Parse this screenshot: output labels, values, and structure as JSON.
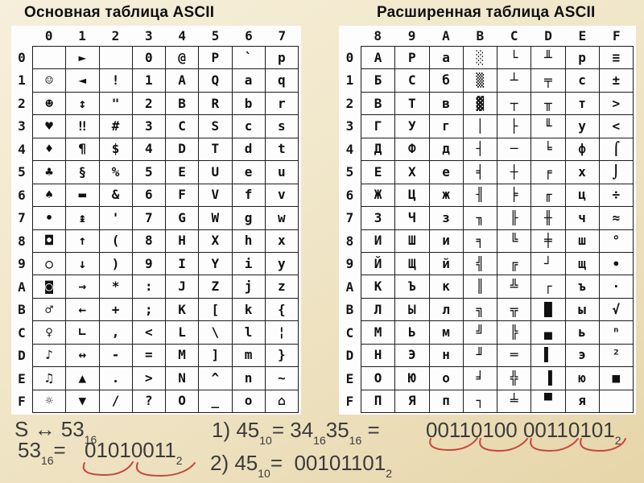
{
  "left_table": {
    "title": "Основная таблица ASCII",
    "col_headers": [
      "0",
      "1",
      "2",
      "3",
      "4",
      "5",
      "6",
      "7"
    ],
    "row_headers": [
      "0",
      "1",
      "2",
      "3",
      "4",
      "5",
      "6",
      "7",
      "8",
      "9",
      "A",
      "B",
      "C",
      "D",
      "E",
      "F"
    ],
    "rows": [
      [
        "",
        "►",
        "",
        "0",
        "@",
        "P",
        "`",
        "p"
      ],
      [
        "☺",
        "◄",
        "!",
        "1",
        "A",
        "Q",
        "a",
        "q"
      ],
      [
        "☻",
        "↕",
        "\"",
        "2",
        "B",
        "R",
        "b",
        "r"
      ],
      [
        "♥",
        "‼",
        "#",
        "3",
        "C",
        "S",
        "c",
        "s"
      ],
      [
        "♦",
        "¶",
        "$",
        "4",
        "D",
        "T",
        "d",
        "t"
      ],
      [
        "♣",
        "§",
        "%",
        "5",
        "E",
        "U",
        "e",
        "u"
      ],
      [
        "♠",
        "▬",
        "&",
        "6",
        "F",
        "V",
        "f",
        "v"
      ],
      [
        "•",
        "↨",
        "'",
        "7",
        "G",
        "W",
        "g",
        "w"
      ],
      [
        "◘",
        "↑",
        "(",
        "8",
        "H",
        "X",
        "h",
        "x"
      ],
      [
        "○",
        "↓",
        ")",
        "9",
        "I",
        "Y",
        "i",
        "y"
      ],
      [
        "◙",
        "→",
        "*",
        ":",
        "J",
        "Z",
        "j",
        "z"
      ],
      [
        "♂",
        "←",
        "+",
        ";",
        "K",
        "[",
        "k",
        "{"
      ],
      [
        "♀",
        "∟",
        ",",
        "<",
        "L",
        "\\",
        "l",
        "¦"
      ],
      [
        "♪",
        "↔",
        "-",
        "=",
        "M",
        "]",
        "m",
        "}"
      ],
      [
        "♫",
        "▲",
        ".",
        ">",
        "N",
        "^",
        "n",
        "~"
      ],
      [
        "☼",
        "▼",
        "/",
        "?",
        "O",
        "_",
        "o",
        "⌂"
      ]
    ]
  },
  "right_table": {
    "title": "Расширенная таблица ASCII",
    "col_headers": [
      "8",
      "9",
      "A",
      "B",
      "C",
      "D",
      "E",
      "F"
    ],
    "row_headers": [
      "0",
      "1",
      "2",
      "3",
      "4",
      "5",
      "6",
      "7",
      "8",
      "9",
      "A",
      "B",
      "C",
      "D",
      "E",
      "F"
    ],
    "rows": [
      [
        "А",
        "Р",
        "а",
        "░",
        "└",
        "╨",
        "р",
        "≡"
      ],
      [
        "Б",
        "С",
        "б",
        "▒",
        "┴",
        "╤",
        "с",
        "±"
      ],
      [
        "В",
        "Т",
        "в",
        "▓",
        "┬",
        "╥",
        "т",
        ">"
      ],
      [
        "Г",
        "У",
        "г",
        "│",
        "├",
        "╙",
        "у",
        "<"
      ],
      [
        "Д",
        "Ф",
        "д",
        "┤",
        "─",
        "╘",
        "ф",
        "⌠"
      ],
      [
        "Е",
        "Х",
        "е",
        "╡",
        "┼",
        "╒",
        "х",
        "⌡"
      ],
      [
        "Ж",
        "Ц",
        "ж",
        "╢",
        "╞",
        "╓",
        "ц",
        "÷"
      ],
      [
        "З",
        "Ч",
        "з",
        "╖",
        "╟",
        "╫",
        "ч",
        "≈"
      ],
      [
        "И",
        "Ш",
        "и",
        "╕",
        "╚",
        "╪",
        "ш",
        "°"
      ],
      [
        "Й",
        "Щ",
        "й",
        "╣",
        "╔",
        "┘",
        "щ",
        "∙"
      ],
      [
        "К",
        "Ъ",
        "к",
        "║",
        "╩",
        "┌",
        "ъ",
        "·"
      ],
      [
        "Л",
        "Ы",
        "л",
        "╗",
        "╦",
        "█",
        "ы",
        "√"
      ],
      [
        "М",
        "Ь",
        "м",
        "╝",
        "╠",
        "▄",
        "ь",
        "ⁿ"
      ],
      [
        "Н",
        "Э",
        "н",
        "╜",
        "═",
        "▌",
        "э",
        "²"
      ],
      [
        "О",
        "Ю",
        "о",
        "╛",
        "╬",
        "▐",
        "ю",
        "■"
      ],
      [
        "П",
        "Я",
        "п",
        "┐",
        "╧",
        "▀",
        "я",
        ""
      ]
    ]
  },
  "formulas": {
    "s_line": [
      {
        "t": "S ↔ 53"
      },
      {
        "t": "16",
        "sub": true
      }
    ],
    "hex_label": [
      {
        "t": "53"
      },
      {
        "t": "16",
        "sub": true
      },
      {
        "t": "= "
      }
    ],
    "hex_binary": [
      {
        "t": "01010011"
      },
      {
        "t": "2",
        "sub": true
      }
    ],
    "ex1_label": [
      {
        "t": "1) 45"
      },
      {
        "t": "10",
        "sub": true
      },
      {
        "t": "= 34"
      },
      {
        "t": "16",
        "sub": true
      },
      {
        "t": "35"
      },
      {
        "t": "16",
        "sub": true
      },
      {
        "t": " ="
      }
    ],
    "ex1_binary": [
      {
        "t": "00110100 00110101"
      },
      {
        "t": "2",
        "sub": true
      }
    ],
    "ex2_line": [
      {
        "t": "2) 45"
      },
      {
        "t": "10",
        "sub": true
      },
      {
        "t": "=  00101101"
      },
      {
        "t": "2",
        "sub": true
      }
    ]
  },
  "colors": {
    "background": "#f1e6c8",
    "panel": "#fdfdfd",
    "grid_line": "#1c1c1c",
    "title_text": "#0f0f0f",
    "formula_text": "#3b3b3b",
    "annotation_red": "#c8473e"
  }
}
